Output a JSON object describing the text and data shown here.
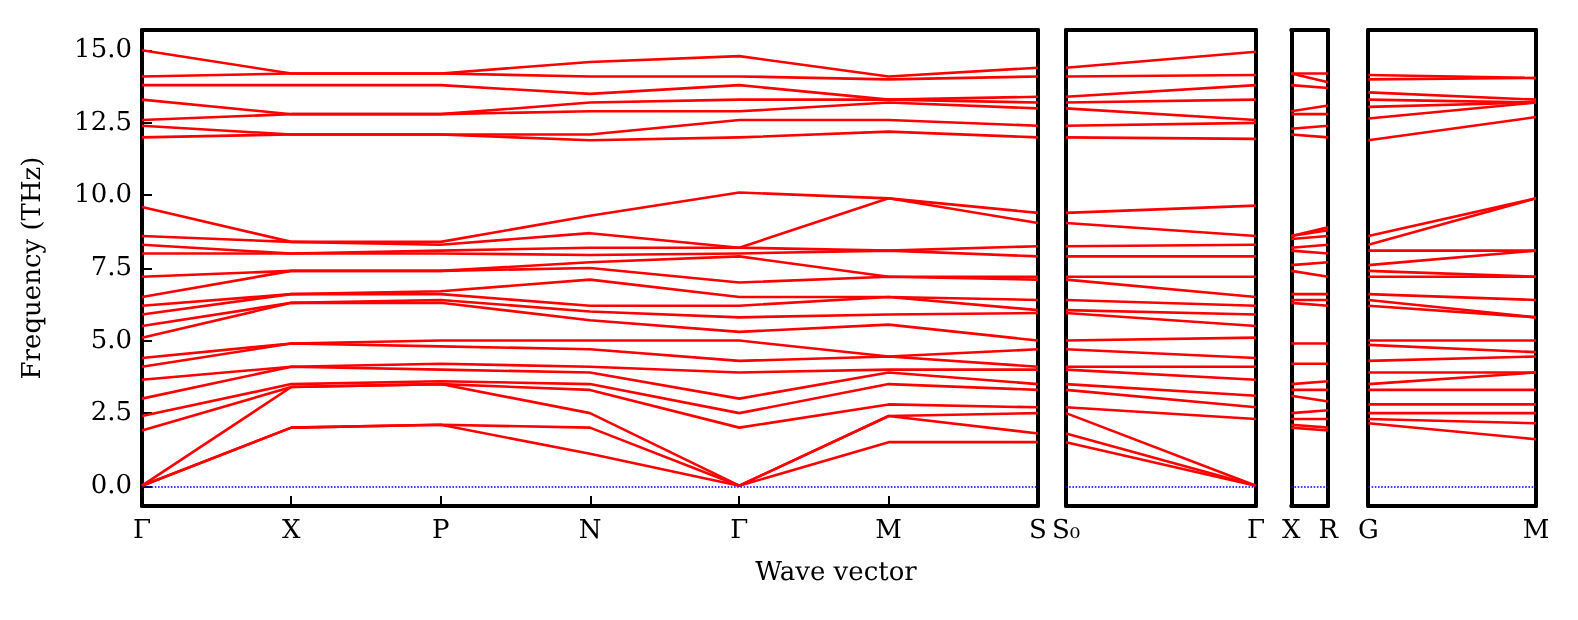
{
  "chart_data": [
    {
      "type": "line",
      "xlabel": "Wave vector",
      "ylabel": "Frequency (THz)",
      "categories": [
        "Γ",
        "X",
        "P",
        "N",
        "Γ",
        "M",
        "S"
      ],
      "ylim": [
        -0.7,
        15.7
      ],
      "yticks": [
        {
          "value": 0,
          "label": "0.0"
        },
        {
          "value": 2.5,
          "label": "2.5"
        },
        {
          "value": 5,
          "label": "5.0"
        },
        {
          "value": 7.5,
          "label": "7.5"
        },
        {
          "value": 10,
          "label": "10.0"
        },
        {
          "value": 12.5,
          "label": "12.5"
        },
        {
          "value": 15,
          "label": "15.0"
        }
      ],
      "grid": false,
      "marker": "none",
      "line_style": "solid",
      "ref_lines": [
        {
          "axis": "y",
          "value": 0,
          "color": "#0000ff",
          "line_style": "dotted"
        }
      ],
      "series": [
        {
          "color": "#ff0000",
          "values": [
            0,
            2.0,
            2.1,
            1.1,
            0,
            1.5,
            1.5
          ]
        },
        {
          "color": "#ff0000",
          "values": [
            0,
            2.0,
            2.1,
            2.0,
            0,
            2.4,
            1.8
          ]
        },
        {
          "color": "#ff0000",
          "values": [
            0,
            3.4,
            3.5,
            2.5,
            0,
            2.4,
            2.5
          ]
        },
        {
          "color": "#ff0000",
          "values": [
            1.9,
            3.4,
            3.5,
            3.3,
            2.0,
            2.8,
            2.7
          ]
        },
        {
          "color": "#ff0000",
          "values": [
            2.4,
            3.5,
            3.6,
            3.5,
            2.5,
            3.5,
            3.3
          ]
        },
        {
          "color": "#ff0000",
          "values": [
            3.0,
            4.1,
            4.0,
            3.9,
            3.0,
            3.9,
            3.5
          ]
        },
        {
          "color": "#ff0000",
          "values": [
            3.65,
            4.1,
            4.2,
            4.1,
            3.9,
            4.0,
            4.0
          ]
        },
        {
          "color": "#ff0000",
          "values": [
            4.1,
            4.9,
            4.8,
            4.7,
            4.3,
            4.45,
            4.1
          ]
        },
        {
          "color": "#ff0000",
          "values": [
            4.4,
            4.9,
            5.0,
            5.0,
            5.0,
            4.45,
            4.7
          ]
        },
        {
          "color": "#ff0000",
          "values": [
            5.1,
            6.3,
            6.3,
            5.7,
            5.3,
            5.55,
            5.0
          ]
        },
        {
          "color": "#ff0000",
          "values": [
            5.5,
            6.3,
            6.4,
            6.0,
            5.8,
            5.9,
            5.95
          ]
        },
        {
          "color": "#ff0000",
          "values": [
            5.9,
            6.6,
            6.6,
            6.2,
            6.2,
            6.5,
            6.05
          ]
        },
        {
          "color": "#ff0000",
          "values": [
            6.2,
            6.6,
            6.7,
            7.1,
            6.5,
            6.5,
            6.4
          ]
        },
        {
          "color": "#ff0000",
          "values": [
            6.5,
            7.4,
            7.4,
            7.5,
            7.0,
            7.2,
            7.1
          ]
        },
        {
          "color": "#ff0000",
          "values": [
            7.2,
            7.4,
            7.4,
            7.7,
            7.9,
            7.2,
            7.2
          ]
        },
        {
          "color": "#ff0000",
          "values": [
            8.0,
            8.0,
            8.0,
            7.95,
            8.0,
            8.1,
            7.9
          ]
        },
        {
          "color": "#ff0000",
          "values": [
            8.3,
            8.0,
            8.1,
            8.2,
            8.2,
            8.1,
            8.25
          ]
        },
        {
          "color": "#ff0000",
          "values": [
            8.6,
            8.4,
            8.3,
            8.7,
            8.2,
            9.9,
            9.05
          ]
        },
        {
          "color": "#ff0000",
          "values": [
            9.6,
            8.4,
            8.4,
            9.3,
            10.1,
            9.9,
            9.4
          ]
        },
        {
          "color": "#ff0000",
          "values": [
            12.0,
            12.1,
            12.1,
            11.9,
            12.0,
            12.2,
            12.0
          ]
        },
        {
          "color": "#ff0000",
          "values": [
            12.4,
            12.1,
            12.1,
            12.1,
            12.6,
            12.6,
            12.4
          ]
        },
        {
          "color": "#ff0000",
          "values": [
            12.6,
            12.8,
            12.8,
            12.9,
            12.9,
            13.2,
            13.0
          ]
        },
        {
          "color": "#ff0000",
          "values": [
            13.3,
            12.8,
            12.8,
            13.2,
            13.3,
            13.3,
            13.2
          ]
        },
        {
          "color": "#ff0000",
          "values": [
            13.8,
            13.8,
            13.8,
            13.5,
            13.8,
            13.3,
            13.4
          ]
        },
        {
          "color": "#ff0000",
          "values": [
            14.1,
            14.2,
            14.2,
            14.1,
            14.1,
            14.0,
            14.1
          ]
        },
        {
          "color": "#ff0000",
          "values": [
            15.0,
            14.2,
            14.2,
            14.6,
            14.8,
            14.1,
            14.4
          ]
        }
      ]
    },
    {
      "type": "line",
      "categories": [
        "S₀",
        "Γ"
      ],
      "ylim": [
        -0.7,
        15.7
      ],
      "tick_labels": "x",
      "marker": "none",
      "line_style": "solid",
      "ref_lines": [
        {
          "axis": "y",
          "value": 0,
          "color": "#0000ff",
          "line_style": "dotted"
        }
      ],
      "series": [
        {
          "color": "#ff0000",
          "values": [
            1.5,
            0
          ]
        },
        {
          "color": "#ff0000",
          "values": [
            1.8,
            0
          ]
        },
        {
          "color": "#ff0000",
          "values": [
            2.5,
            0
          ]
        },
        {
          "color": "#ff0000",
          "values": [
            2.7,
            2.3
          ]
        },
        {
          "color": "#ff0000",
          "values": [
            3.3,
            2.7
          ]
        },
        {
          "color": "#ff0000",
          "values": [
            3.5,
            3.1
          ]
        },
        {
          "color": "#ff0000",
          "values": [
            4.0,
            3.65
          ]
        },
        {
          "color": "#ff0000",
          "values": [
            4.1,
            4.1
          ]
        },
        {
          "color": "#ff0000",
          "values": [
            4.7,
            4.4
          ]
        },
        {
          "color": "#ff0000",
          "values": [
            5.0,
            5.1
          ]
        },
        {
          "color": "#ff0000",
          "values": [
            5.95,
            5.5
          ]
        },
        {
          "color": "#ff0000",
          "values": [
            6.05,
            5.9
          ]
        },
        {
          "color": "#ff0000",
          "values": [
            6.4,
            6.2
          ]
        },
        {
          "color": "#ff0000",
          "values": [
            7.1,
            6.5
          ]
        },
        {
          "color": "#ff0000",
          "values": [
            7.2,
            7.2
          ]
        },
        {
          "color": "#ff0000",
          "values": [
            7.9,
            7.9
          ]
        },
        {
          "color": "#ff0000",
          "values": [
            8.25,
            8.3
          ]
        },
        {
          "color": "#ff0000",
          "values": [
            9.05,
            8.6
          ]
        },
        {
          "color": "#ff0000",
          "values": [
            9.4,
            9.65
          ]
        },
        {
          "color": "#ff0000",
          "values": [
            12.0,
            11.95
          ]
        },
        {
          "color": "#ff0000",
          "values": [
            12.4,
            12.5
          ]
        },
        {
          "color": "#ff0000",
          "values": [
            13.0,
            12.6
          ]
        },
        {
          "color": "#ff0000",
          "values": [
            13.2,
            13.3
          ]
        },
        {
          "color": "#ff0000",
          "values": [
            13.4,
            13.8
          ]
        },
        {
          "color": "#ff0000",
          "values": [
            14.1,
            14.15
          ]
        },
        {
          "color": "#ff0000",
          "values": [
            14.4,
            14.95
          ]
        }
      ]
    },
    {
      "type": "line",
      "categories": [
        "X",
        "R"
      ],
      "ylim": [
        -0.7,
        15.7
      ],
      "tick_labels": "x",
      "marker": "none",
      "line_style": "solid",
      "ref_lines": [
        {
          "axis": "y",
          "value": 0,
          "color": "#0000ff",
          "line_style": "dotted"
        }
      ],
      "series": [
        {
          "color": "#ff0000",
          "values": [
            2.0,
            1.9
          ]
        },
        {
          "color": "#ff0000",
          "values": [
            2.1,
            2.0
          ]
        },
        {
          "color": "#ff0000",
          "values": [
            2.3,
            2.3
          ]
        },
        {
          "color": "#ff0000",
          "values": [
            2.5,
            2.6
          ]
        },
        {
          "color": "#ff0000",
          "values": [
            3.1,
            2.9
          ]
        },
        {
          "color": "#ff0000",
          "values": [
            3.3,
            3.3
          ]
        },
        {
          "color": "#ff0000",
          "values": [
            3.5,
            3.6
          ]
        },
        {
          "color": "#ff0000",
          "values": [
            4.2,
            4.2
          ]
        },
        {
          "color": "#ff0000",
          "values": [
            4.9,
            4.9
          ]
        },
        {
          "color": "#ff0000",
          "values": [
            6.3,
            6.2
          ]
        },
        {
          "color": "#ff0000",
          "values": [
            6.4,
            6.4
          ]
        },
        {
          "color": "#ff0000",
          "values": [
            6.6,
            6.6
          ]
        },
        {
          "color": "#ff0000",
          "values": [
            7.4,
            7.2
          ]
        },
        {
          "color": "#ff0000",
          "values": [
            7.6,
            7.7
          ]
        },
        {
          "color": "#ff0000",
          "values": [
            8.1,
            8.0
          ]
        },
        {
          "color": "#ff0000",
          "values": [
            8.2,
            8.3
          ]
        },
        {
          "color": "#ff0000",
          "values": [
            8.5,
            8.6
          ]
        },
        {
          "color": "#ff0000",
          "values": [
            8.6,
            8.8
          ]
        },
        {
          "color": "#ff0000",
          "values": [
            8.6,
            8.9
          ]
        },
        {
          "color": "#ff0000",
          "values": [
            12.1,
            12.0
          ]
        },
        {
          "color": "#ff0000",
          "values": [
            12.3,
            12.4
          ]
        },
        {
          "color": "#ff0000",
          "values": [
            12.8,
            12.8
          ]
        },
        {
          "color": "#ff0000",
          "values": [
            12.9,
            13.1
          ]
        },
        {
          "color": "#ff0000",
          "values": [
            13.8,
            13.7
          ]
        },
        {
          "color": "#ff0000",
          "values": [
            14.2,
            13.9
          ]
        },
        {
          "color": "#ff0000",
          "values": [
            14.2,
            14.2
          ]
        }
      ]
    },
    {
      "type": "line",
      "categories": [
        "G",
        "M"
      ],
      "ylim": [
        -0.7,
        15.7
      ],
      "tick_labels": "x",
      "marker": "none",
      "line_style": "solid",
      "ref_lines": [
        {
          "axis": "y",
          "value": 0,
          "color": "#0000ff",
          "line_style": "dotted"
        }
      ],
      "series": [
        {
          "color": "#ff0000",
          "values": [
            2.15,
            1.6
          ]
        },
        {
          "color": "#ff0000",
          "values": [
            2.3,
            2.15
          ]
        },
        {
          "color": "#ff0000",
          "values": [
            2.5,
            2.5
          ]
        },
        {
          "color": "#ff0000",
          "values": [
            2.8,
            2.8
          ]
        },
        {
          "color": "#ff0000",
          "values": [
            3.3,
            3.3
          ]
        },
        {
          "color": "#ff0000",
          "values": [
            3.5,
            3.9
          ]
        },
        {
          "color": "#ff0000",
          "values": [
            3.9,
            3.9
          ]
        },
        {
          "color": "#ff0000",
          "values": [
            4.3,
            4.45
          ]
        },
        {
          "color": "#ff0000",
          "values": [
            4.85,
            4.6
          ]
        },
        {
          "color": "#ff0000",
          "values": [
            5.0,
            5.0
          ]
        },
        {
          "color": "#ff0000",
          "values": [
            6.2,
            5.8
          ]
        },
        {
          "color": "#ff0000",
          "values": [
            6.4,
            5.8
          ]
        },
        {
          "color": "#ff0000",
          "values": [
            6.6,
            6.4
          ]
        },
        {
          "color": "#ff0000",
          "values": [
            7.2,
            7.2
          ]
        },
        {
          "color": "#ff0000",
          "values": [
            7.4,
            7.2
          ]
        },
        {
          "color": "#ff0000",
          "values": [
            7.6,
            8.1
          ]
        },
        {
          "color": "#ff0000",
          "values": [
            8.1,
            8.1
          ]
        },
        {
          "color": "#ff0000",
          "values": [
            8.3,
            9.9
          ]
        },
        {
          "color": "#ff0000",
          "values": [
            8.6,
            9.9
          ]
        },
        {
          "color": "#ff0000",
          "values": [
            11.9,
            12.7
          ]
        },
        {
          "color": "#ff0000",
          "values": [
            12.65,
            13.2
          ]
        },
        {
          "color": "#ff0000",
          "values": [
            13.05,
            13.2
          ]
        },
        {
          "color": "#ff0000",
          "values": [
            13.3,
            13.2
          ]
        },
        {
          "color": "#ff0000",
          "values": [
            13.55,
            13.3
          ]
        },
        {
          "color": "#ff0000",
          "values": [
            14.0,
            14.05
          ]
        },
        {
          "color": "#ff0000",
          "values": [
            14.15,
            14.05
          ]
        }
      ]
    }
  ]
}
